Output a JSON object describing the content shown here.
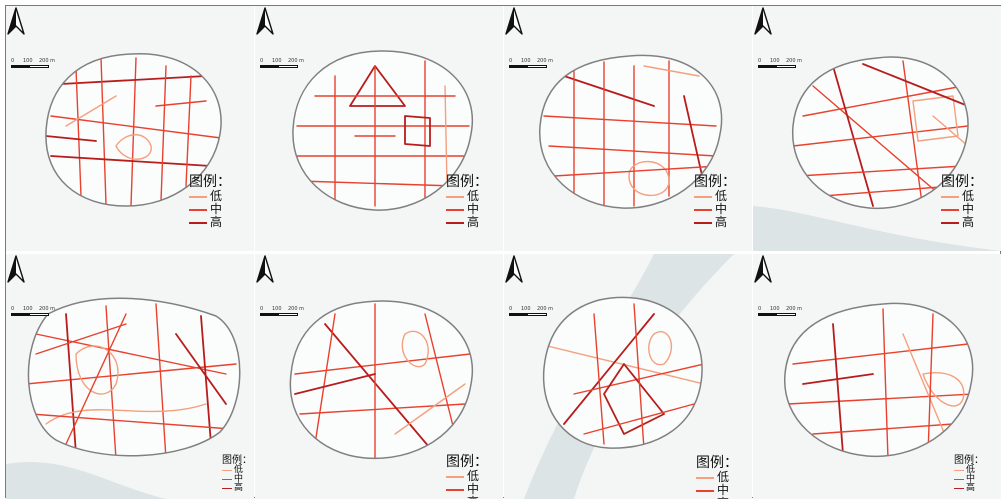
{
  "legend": {
    "title": "图例：",
    "levels": [
      {
        "label": "低",
        "color": "#f4a07e"
      },
      {
        "label": "中",
        "color": "#e8412e"
      },
      {
        "label": "高",
        "color": "#b81d1d"
      }
    ]
  },
  "scale": {
    "l0": "0",
    "l1": "100",
    "l2": "200 m"
  },
  "colors": {
    "road_low": "#f4a07e",
    "road_mid": "#e8412e",
    "road_high": "#b81d1d",
    "boundary": "#808080",
    "background": "#f4f6f5",
    "water": "#dde4e6"
  },
  "panels": [
    {
      "id": "a",
      "legend_style": "large"
    },
    {
      "id": "b",
      "legend_style": "large"
    },
    {
      "id": "c",
      "legend_style": "large"
    },
    {
      "id": "d",
      "legend_style": "large"
    },
    {
      "id": "e",
      "legend_style": "small"
    },
    {
      "id": "f",
      "legend_style": "large"
    },
    {
      "id": "g",
      "legend_style": "large"
    },
    {
      "id": "h",
      "legend_style": "small"
    }
  ]
}
